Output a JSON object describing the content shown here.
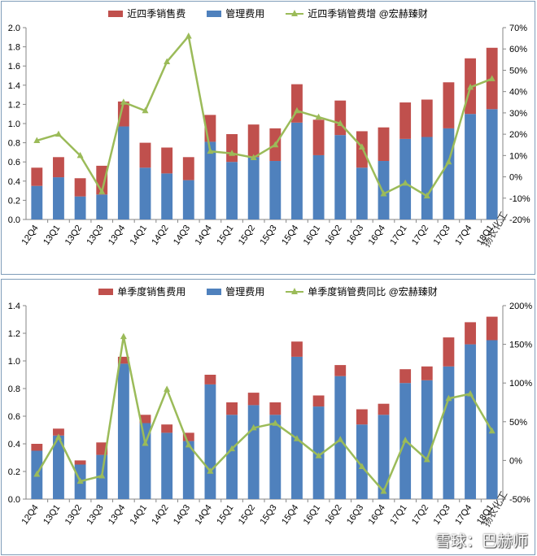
{
  "colors": {
    "sales": "#c0504d",
    "admin": "#4f81bd",
    "line": "#9bbb59",
    "axis": "#868686"
  },
  "watermark": "雪球：巴赫师",
  "chart_data": [
    {
      "type": "bar",
      "stacked": true,
      "legend_position": "top",
      "grid": false,
      "categories": [
        "12Q4",
        "13Q1",
        "13Q2",
        "13Q3",
        "13Q4",
        "14Q1",
        "14Q2",
        "14Q3",
        "14Q4",
        "15Q1",
        "15Q2",
        "15Q3",
        "15Q4",
        "16Q1",
        "16Q2",
        "16Q3",
        "16Q4",
        "17Q1",
        "17Q2",
        "17Q3",
        "17Q4",
        "18Q1"
      ],
      "series": [
        {
          "name": "管理费用",
          "axis": "left",
          "values": [
            0.35,
            0.44,
            0.24,
            0.26,
            0.97,
            0.54,
            0.48,
            0.41,
            0.81,
            0.6,
            0.65,
            0.61,
            1.01,
            0.67,
            0.88,
            0.54,
            0.61,
            0.84,
            0.86,
            0.95,
            1.1,
            1.15
          ]
        },
        {
          "name": "近四季销售费",
          "axis": "left",
          "values": [
            0.19,
            0.21,
            0.19,
            0.3,
            0.26,
            0.26,
            0.27,
            0.24,
            0.28,
            0.29,
            0.34,
            0.34,
            0.4,
            0.37,
            0.36,
            0.38,
            0.35,
            0.38,
            0.39,
            0.48,
            0.58,
            0.64
          ]
        },
        {
          "name": "近四季销管费增 @宏赫臻财",
          "type": "line",
          "axis": "right",
          "values": [
            17,
            20,
            10,
            -7,
            35,
            31,
            54,
            66,
            12,
            11,
            9,
            15,
            31,
            28,
            25,
            14,
            -8,
            -3,
            -9,
            7,
            42,
            46
          ]
        }
      ],
      "ylim": [
        0,
        2.0
      ],
      "yticks": [
        "0.0",
        "0.2",
        "0.4",
        "0.6",
        "0.8",
        "1.0",
        "1.2",
        "1.4",
        "1.6",
        "1.8",
        "2.0"
      ],
      "y2lim": [
        -20,
        70
      ],
      "y2ticks": [
        "-20%",
        "-10%",
        "0%",
        "10%",
        "20%",
        "30%",
        "40%",
        "50%",
        "60%",
        "70%"
      ],
      "annotation": "扬农化工"
    },
    {
      "type": "bar",
      "stacked": true,
      "legend_position": "top",
      "grid": false,
      "categories": [
        "12Q4",
        "13Q1",
        "13Q2",
        "13Q3",
        "13Q4",
        "14Q1",
        "14Q2",
        "14Q3",
        "14Q4",
        "15Q1",
        "15Q2",
        "15Q3",
        "15Q4",
        "16Q1",
        "16Q2",
        "16Q3",
        "16Q4",
        "17Q1",
        "17Q2",
        "17Q3",
        "17Q4",
        "18Q1"
      ],
      "series": [
        {
          "name": "管理费用",
          "axis": "left",
          "values": [
            0.35,
            0.46,
            0.25,
            0.32,
            0.98,
            0.55,
            0.48,
            0.42,
            0.83,
            0.61,
            0.68,
            0.61,
            1.03,
            0.67,
            0.89,
            0.54,
            0.61,
            0.84,
            0.86,
            0.96,
            1.12,
            1.15
          ]
        },
        {
          "name": "单季度销售费用",
          "axis": "left",
          "values": [
            0.05,
            0.05,
            0.03,
            0.09,
            0.05,
            0.06,
            0.06,
            0.06,
            0.07,
            0.09,
            0.09,
            0.09,
            0.11,
            0.08,
            0.08,
            0.11,
            0.08,
            0.1,
            0.1,
            0.21,
            0.16,
            0.17
          ]
        },
        {
          "name": "单季度销管费同比 @宏赫臻财",
          "type": "line",
          "axis": "right",
          "values": [
            -18,
            30,
            -27,
            -20,
            160,
            22,
            92,
            20,
            -14,
            15,
            42,
            48,
            28,
            6,
            27,
            -8,
            -40,
            26,
            1,
            80,
            86,
            38
          ]
        }
      ],
      "ylim": [
        0,
        1.4
      ],
      "yticks": [
        "0.0",
        "0.2",
        "0.4",
        "0.6",
        "0.8",
        "1.0",
        "1.2",
        "1.4"
      ],
      "y2lim": [
        -50,
        200
      ],
      "y2ticks": [
        "-50%",
        "0%",
        "50%",
        "100%",
        "150%",
        "200%"
      ],
      "annotation": "扬农化工"
    }
  ]
}
